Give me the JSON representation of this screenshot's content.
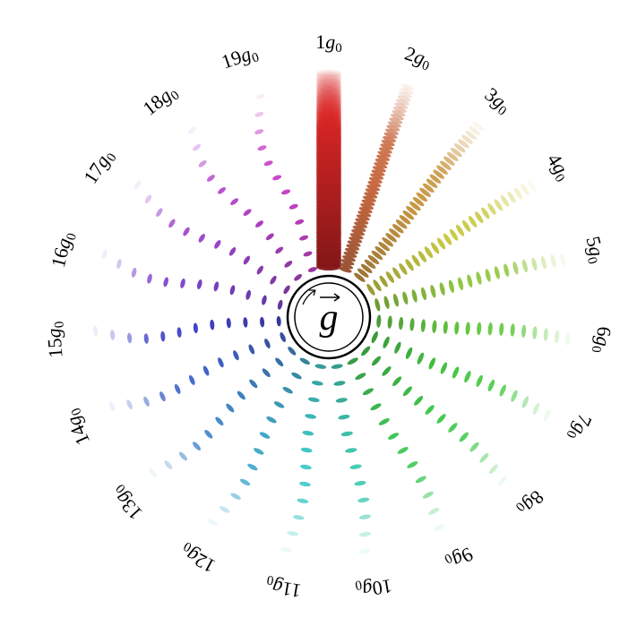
{
  "center_label": "g",
  "unit": {
    "symbol": "g",
    "subscript": "0"
  },
  "multiples": [
    "1",
    "2",
    "3",
    "4",
    "5",
    "6",
    "7",
    "8",
    "9",
    "10",
    "11",
    "12",
    "13",
    "14",
    "15",
    "16",
    "17",
    "18",
    "19"
  ]
}
